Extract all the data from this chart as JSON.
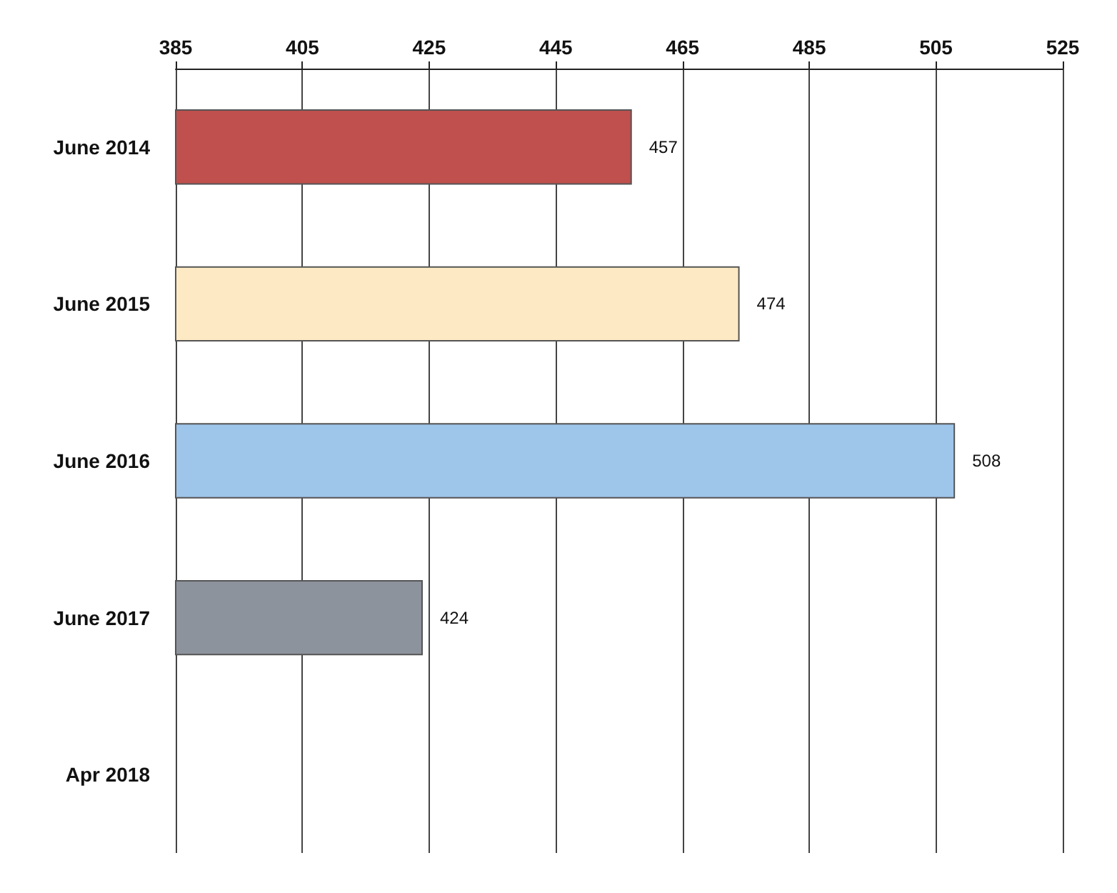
{
  "chart_data": {
    "type": "bar",
    "orientation": "horizontal",
    "categories": [
      "June 2014",
      "June 2015",
      "June 2016",
      "June 2017",
      "Apr 2018"
    ],
    "values": [
      457,
      474,
      508,
      424,
      null
    ],
    "colors": [
      "#c0504d",
      "#fde9c3",
      "#9ec5ea",
      "#8c939c",
      "#cccccc"
    ],
    "xlim": [
      385,
      525
    ],
    "xticks": [
      385,
      405,
      425,
      445,
      465,
      485,
      505,
      525
    ],
    "grid": "x",
    "data_labels": true
  }
}
